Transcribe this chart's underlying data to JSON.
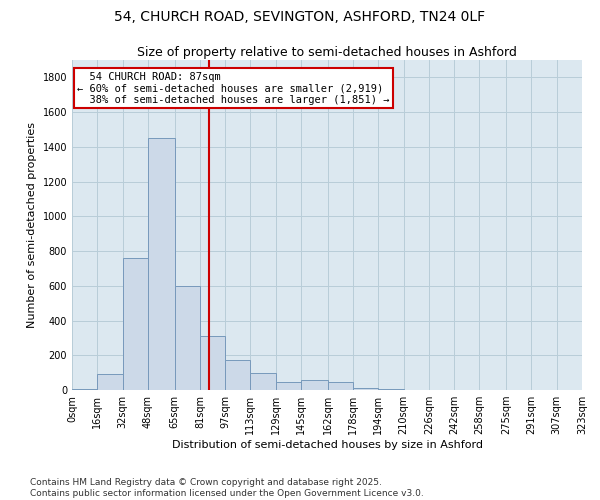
{
  "title_line1": "54, CHURCH ROAD, SEVINGTON, ASHFORD, TN24 0LF",
  "title_line2": "Size of property relative to semi-detached houses in Ashford",
  "xlabel": "Distribution of semi-detached houses by size in Ashford",
  "ylabel": "Number of semi-detached properties",
  "bin_labels": [
    "0sqm",
    "16sqm",
    "32sqm",
    "48sqm",
    "65sqm",
    "81sqm",
    "97sqm",
    "113sqm",
    "129sqm",
    "145sqm",
    "162sqm",
    "178sqm",
    "194sqm",
    "210sqm",
    "226sqm",
    "242sqm",
    "258sqm",
    "275sqm",
    "291sqm",
    "307sqm",
    "323sqm"
  ],
  "bin_edges": [
    0,
    16,
    32,
    48,
    65,
    81,
    97,
    113,
    129,
    145,
    162,
    178,
    194,
    210,
    226,
    242,
    258,
    275,
    291,
    307,
    323
  ],
  "bar_heights": [
    5,
    90,
    760,
    1450,
    600,
    310,
    175,
    100,
    45,
    60,
    45,
    10,
    5,
    0,
    0,
    0,
    0,
    0,
    0,
    0
  ],
  "bar_color": "#ccd9e8",
  "bar_edge_color": "#7799bb",
  "property_size": 87,
  "property_label": "54 CHURCH ROAD: 87sqm",
  "pct_smaller": "60%",
  "pct_larger": "38%",
  "n_smaller": "2,919",
  "n_larger": "1,851",
  "vline_color": "#cc0000",
  "annotation_box_edge": "#cc0000",
  "ylim": [
    0,
    1900
  ],
  "yticks": [
    0,
    200,
    400,
    600,
    800,
    1000,
    1200,
    1400,
    1600,
    1800
  ],
  "background_color": "#ffffff",
  "plot_bg_color": "#dce8f0",
  "grid_color": "#b8cdd8",
  "footer_text": "Contains HM Land Registry data © Crown copyright and database right 2025.\nContains public sector information licensed under the Open Government Licence v3.0.",
  "title_fontsize": 10,
  "subtitle_fontsize": 9,
  "axis_label_fontsize": 8,
  "tick_fontsize": 7,
  "annotation_fontsize": 7.5,
  "footer_fontsize": 6.5
}
